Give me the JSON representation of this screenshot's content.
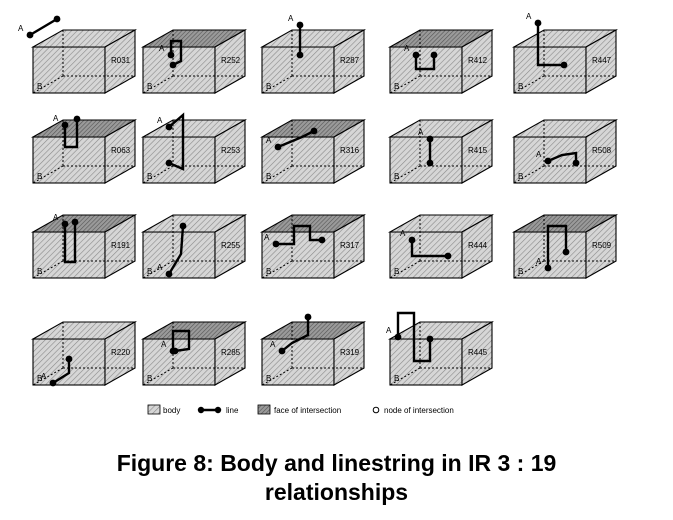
{
  "figure": {
    "caption_line1": "Figure 8: Body and linestring  in IR 3 : 19",
    "caption_line2": "relationships",
    "point_a_label": "A",
    "point_b_label": "B"
  },
  "legend": {
    "body": "body",
    "line": "line",
    "face": "face of intersection",
    "node": "node of intersection"
  },
  "relations": [
    {
      "id": "R031",
      "top_face": "plain",
      "line": "outside"
    },
    {
      "id": "R252",
      "top_face": "hatched",
      "line": "bracket"
    },
    {
      "id": "R287",
      "top_face": "plain",
      "line": "vertical_touch"
    },
    {
      "id": "R412",
      "top_face": "hatched",
      "line": "u_shape"
    },
    {
      "id": "R447",
      "top_face": "plain",
      "line": "l_shape"
    },
    {
      "id": "R063",
      "top_face": "hatched",
      "line": "hook"
    },
    {
      "id": "R253",
      "top_face": "plain",
      "line": "loop"
    },
    {
      "id": "R316",
      "top_face": "hatched",
      "line": "on_face"
    },
    {
      "id": "R415",
      "top_face": "plain",
      "line": "vertical_inside"
    },
    {
      "id": "R508",
      "top_face": "plain",
      "line": "flat_inside"
    },
    {
      "id": "R191",
      "top_face": "hatched",
      "line": "pierce"
    },
    {
      "id": "R255",
      "top_face": "plain",
      "line": "curve"
    },
    {
      "id": "R317",
      "top_face": "hatched",
      "line": "arch"
    },
    {
      "id": "R444",
      "top_face": "plain",
      "line": "step"
    },
    {
      "id": "R509",
      "top_face": "hatched",
      "line": "pierce_down"
    },
    {
      "id": "R220",
      "top_face": "plain",
      "line": "inside_short"
    },
    {
      "id": "R285",
      "top_face": "hatched",
      "line": "top_arch"
    },
    {
      "id": "R319",
      "top_face": "hatched",
      "line": "face_tail"
    },
    {
      "id": "R445",
      "top_face": "plain",
      "line": "wide_arch"
    }
  ]
}
